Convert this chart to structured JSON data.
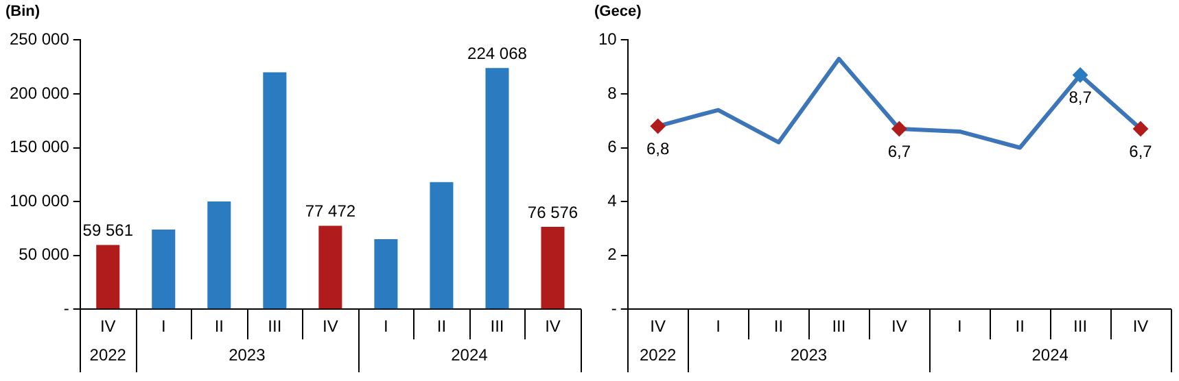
{
  "chart_data": [
    {
      "type": "bar",
      "ylabel": "(Bin)",
      "categories": [
        "IV",
        "I",
        "II",
        "III",
        "IV",
        "I",
        "II",
        "III",
        "IV"
      ],
      "values": [
        59561,
        74000,
        100000,
        220000,
        77472,
        65000,
        118000,
        224068,
        76576
      ],
      "colors": [
        "#b01c1c",
        "#2b7bc0",
        "#2b7bc0",
        "#2b7bc0",
        "#b01c1c",
        "#2b7bc0",
        "#2b7bc0",
        "#2b7bc0",
        "#b01c1c"
      ],
      "value_labels": [
        "59 561",
        null,
        null,
        null,
        "77 472",
        null,
        null,
        "224 068",
        "76 576"
      ],
      "ylim": [
        0,
        250000
      ],
      "yticks": [
        {
          "value": 0,
          "label": "-"
        },
        {
          "value": 50000,
          "label": "50 000"
        },
        {
          "value": 100000,
          "label": "100 000"
        },
        {
          "value": 150000,
          "label": "150 000"
        },
        {
          "value": 200000,
          "label": "200 000"
        },
        {
          "value": 250000,
          "label": "250 000"
        }
      ],
      "annotations": [
        "2022",
        "2023",
        "2024"
      ],
      "grid": false,
      "legend": false
    },
    {
      "type": "line",
      "ylabel": "(Gece)",
      "categories": [
        "IV",
        "I",
        "II",
        "III",
        "IV",
        "I",
        "II",
        "III",
        "IV"
      ],
      "series": [
        {
          "color": "#3d76b8",
          "values": [
            6.8,
            7.4,
            6.2,
            9.3,
            6.7,
            6.6,
            6.0,
            8.7,
            6.7
          ]
        },
        {
          "type": "scatter",
          "marker": "diamond",
          "values": [
            6.8,
            null,
            null,
            null,
            6.7,
            null,
            null,
            8.7,
            6.7
          ],
          "colors": [
            "#b01c1c",
            null,
            null,
            null,
            "#b01c1c",
            null,
            null,
            "#2b7bc0",
            "#b01c1c"
          ],
          "value_labels": [
            "6,8",
            null,
            null,
            null,
            "6,7",
            null,
            null,
            "8,7",
            "6,7"
          ]
        }
      ],
      "line_style": "solid",
      "ylim": [
        0,
        10
      ],
      "yticks": [
        {
          "value": 0,
          "label": "-"
        },
        2,
        4,
        6,
        8,
        10
      ],
      "annotations": [
        "2022",
        "2023",
        "2024"
      ],
      "grid": false,
      "legend": false
    }
  ]
}
